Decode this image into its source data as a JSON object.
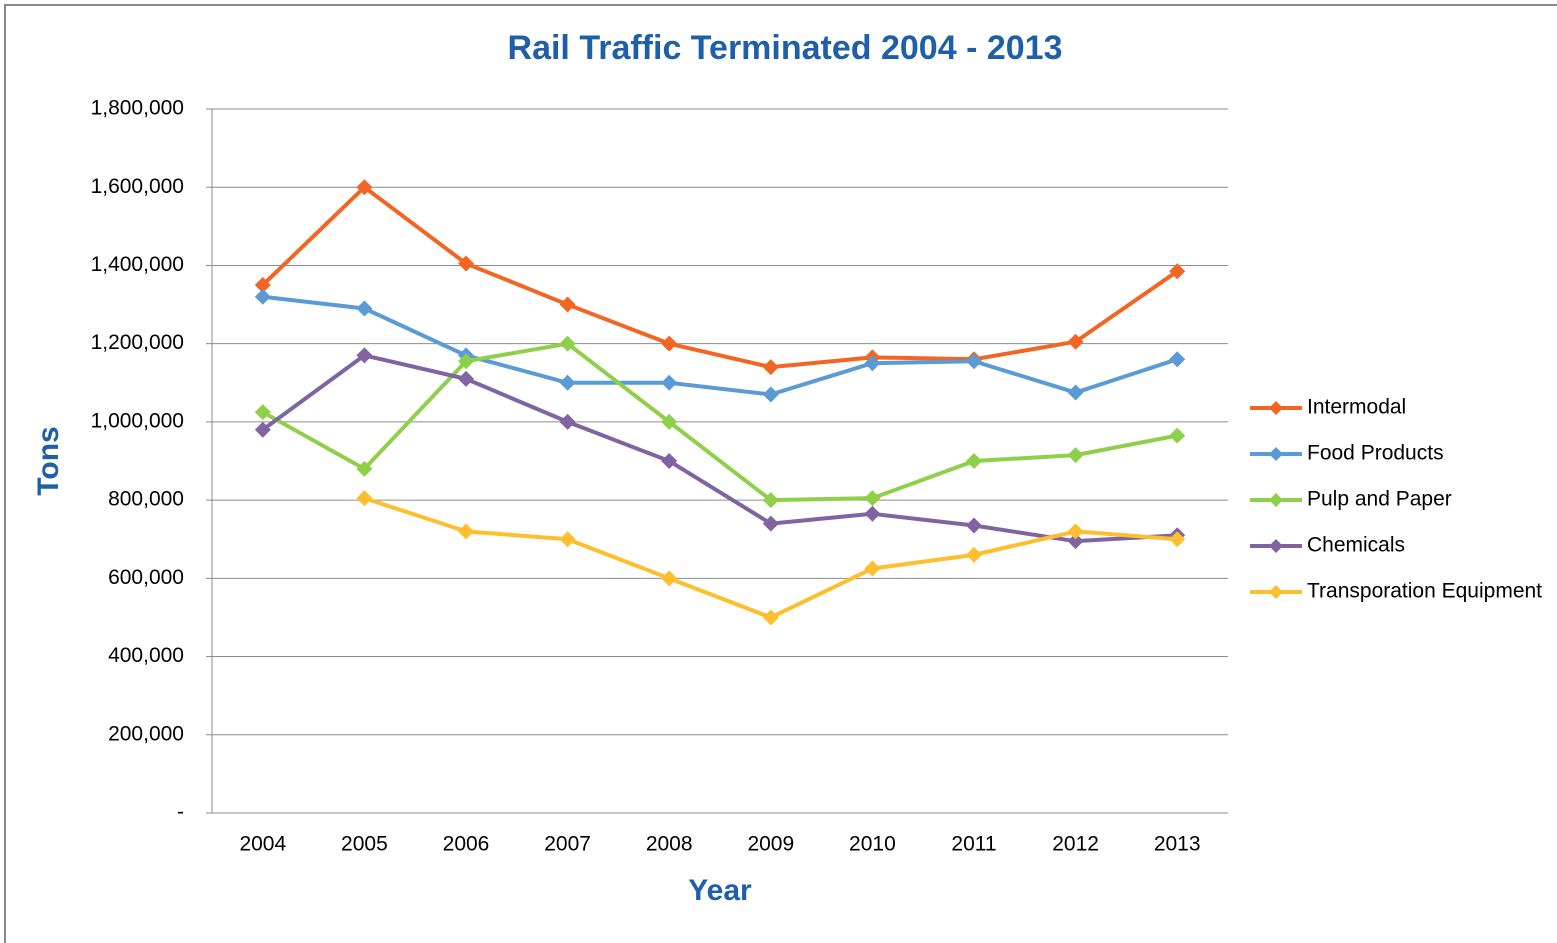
{
  "chart_data": {
    "type": "line",
    "title": "Rail Traffic Terminated 2004 - 2013",
    "x_label": "Year",
    "y_label": "Tons",
    "categories": [
      "2004",
      "2005",
      "2006",
      "2007",
      "2008",
      "2009",
      "2010",
      "2011",
      "2012",
      "2013"
    ],
    "series": [
      {
        "name": "Intermodal",
        "color": "#f26522",
        "values": [
          1350000,
          1600000,
          1405000,
          1300000,
          1200000,
          1140000,
          1165000,
          1160000,
          1205000,
          1385000
        ]
      },
      {
        "name": "Food Products",
        "color": "#5b9bd5",
        "values": [
          1320000,
          1290000,
          1170000,
          1100000,
          1100000,
          1070000,
          1150000,
          1155000,
          1075000,
          1160000
        ]
      },
      {
        "name": "Pulp and Paper",
        "color": "#8ed04a",
        "values": [
          1025000,
          880000,
          1155000,
          1200000,
          1000000,
          800000,
          805000,
          900000,
          915000,
          965000
        ]
      },
      {
        "name": "Chemicals",
        "color": "#8064a2",
        "values": [
          980000,
          1170000,
          1110000,
          1000000,
          900000,
          740000,
          765000,
          735000,
          695000,
          710000
        ]
      },
      {
        "name": "Transporation Equipment",
        "color": "#fdbf2d",
        "values": [
          null,
          805000,
          720000,
          700000,
          600000,
          500000,
          625000,
          660000,
          720000,
          700000
        ]
      }
    ],
    "ylim": [
      0,
      1800000
    ],
    "yticks": [
      {
        "value": 0,
        "label": "-"
      },
      {
        "value": 200000,
        "label": "200,000"
      },
      {
        "value": 400000,
        "label": "400,000"
      },
      {
        "value": 600000,
        "label": "600,000"
      },
      {
        "value": 800000,
        "label": "800,000"
      },
      {
        "value": 1000000,
        "label": "1,000,000"
      },
      {
        "value": 1200000,
        "label": "1,200,000"
      },
      {
        "value": 1400000,
        "label": "1,400,000"
      },
      {
        "value": 1600000,
        "label": "1,600,000"
      },
      {
        "value": 1800000,
        "label": "1,800,000"
      }
    ],
    "grid": true,
    "legend": "right"
  }
}
